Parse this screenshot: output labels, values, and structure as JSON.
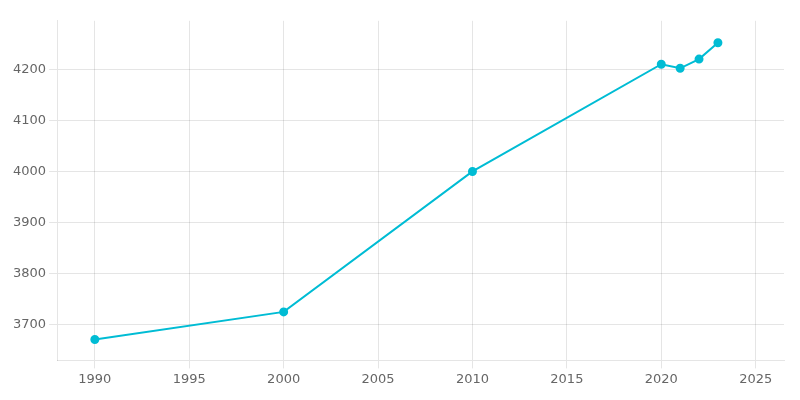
{
  "chart_data": {
    "type": "line",
    "x": [
      1990,
      2000,
      2010,
      2020,
      2021,
      2022,
      2023
    ],
    "values": [
      3671,
      3725,
      4000,
      4210,
      4202,
      4220,
      4252
    ],
    "color": "#00bcd4",
    "marker": "circle",
    "line_style": "solid",
    "xlim": [
      1988,
      2026.5
    ],
    "ylim": [
      3630,
      4295
    ],
    "xticks": [
      1990,
      1995,
      2000,
      2005,
      2010,
      2015,
      2020,
      2025
    ],
    "yticks": [
      3700,
      3800,
      3900,
      4000,
      4100,
      4200
    ],
    "grid": true
  }
}
